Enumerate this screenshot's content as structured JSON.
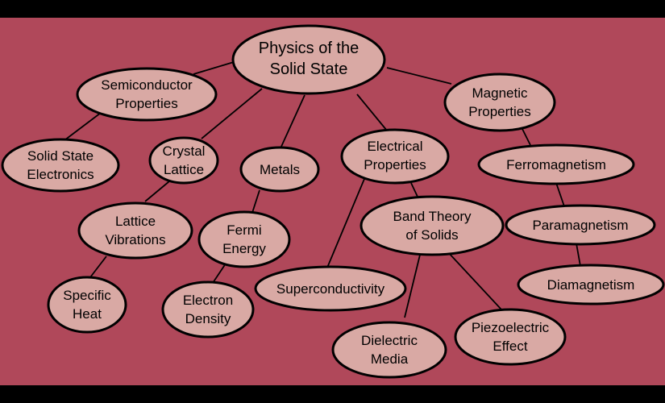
{
  "colors": {
    "background": "#b0485a",
    "node_fill": "#d9a9a4",
    "frame": "#000000"
  },
  "nodes": {
    "root": [
      "Physics of the",
      "Solid State"
    ],
    "semiconductor": [
      "Semiconductor",
      "Properties"
    ],
    "solid_state_electronics": [
      "Solid State",
      "Electronics"
    ],
    "crystal_lattice": [
      "Crystal",
      "Lattice"
    ],
    "metals": [
      "Metals"
    ],
    "electrical": [
      "Electrical",
      "Properties"
    ],
    "magnetic": [
      "Magnetic",
      "Properties"
    ],
    "ferromagnetism": [
      "Ferromagnetism"
    ],
    "paramagnetism": [
      "Paramagnetism"
    ],
    "diamagnetism": [
      "Diamagnetism"
    ],
    "lattice_vibrations": [
      "Lattice",
      "Vibrations"
    ],
    "specific_heat": [
      "Specific",
      "Heat"
    ],
    "fermi_energy": [
      "Fermi",
      "Energy"
    ],
    "electron_density": [
      "Electron",
      "Density"
    ],
    "band_theory": [
      "Band Theory",
      "of Solids"
    ],
    "superconductivity": [
      "Superconductivity"
    ],
    "dielectric": [
      "Dielectric",
      "Media"
    ],
    "piezoelectric": [
      "Piezoelectric",
      "Effect"
    ]
  }
}
